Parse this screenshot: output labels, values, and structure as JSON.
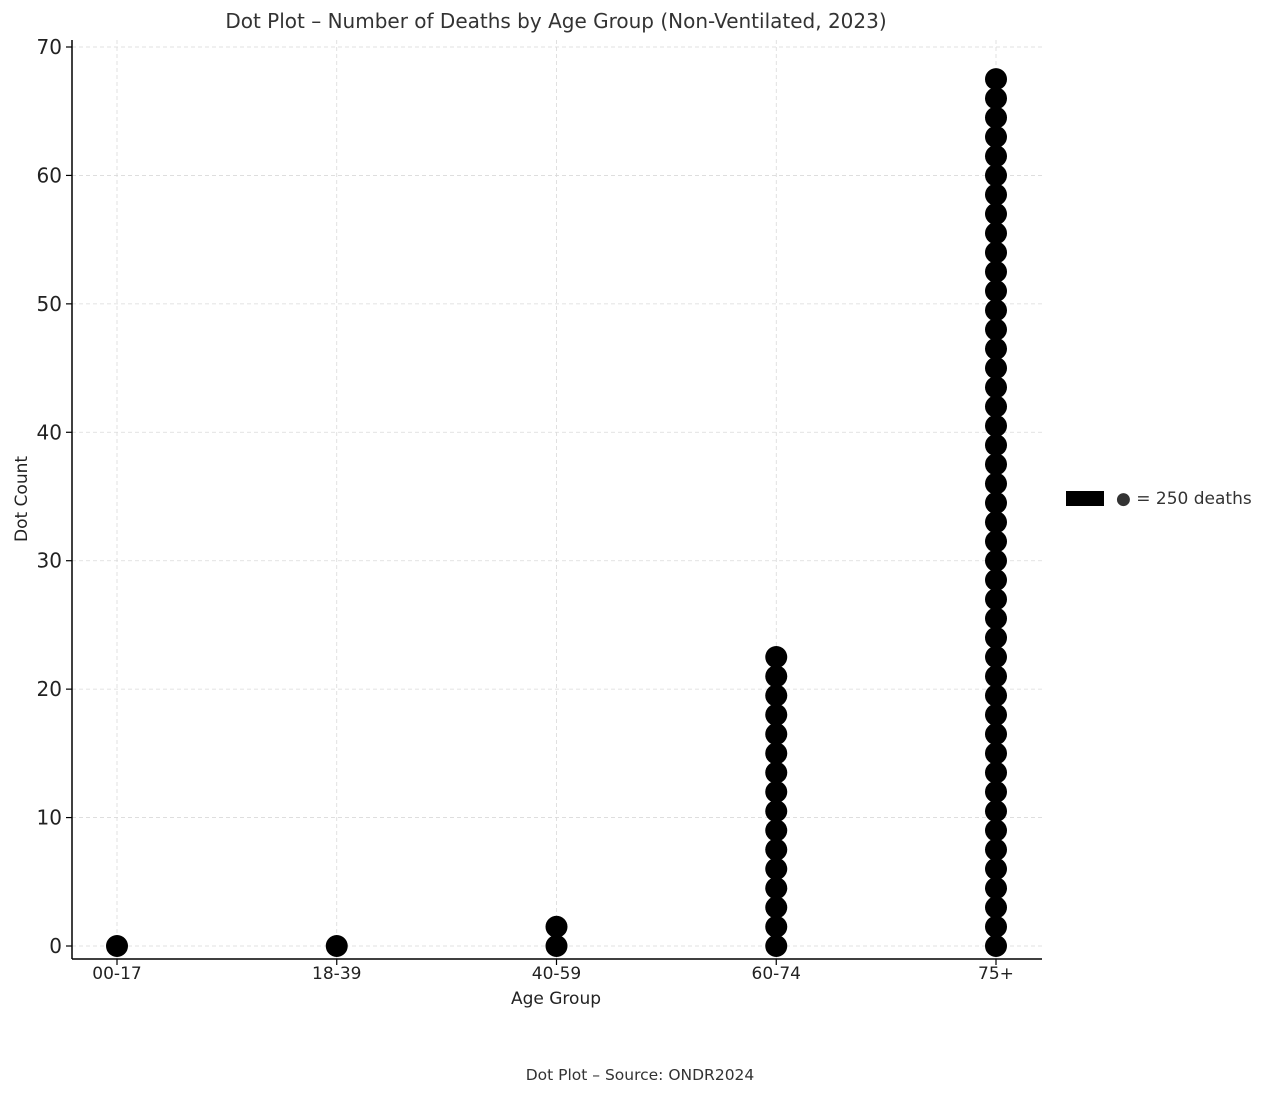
{
  "chart_data": {
    "type": "scatter",
    "title": "Dot Plot – Number of Deaths by Age Group (Non-Ventilated, 2023)",
    "xlabel": "Age Group",
    "ylabel": "Dot Count",
    "categories": [
      "00-17",
      "18-39",
      "40-59",
      "60-74",
      "75+"
    ],
    "dot_counts": [
      1,
      1,
      2,
      16,
      46
    ],
    "y_spacing": 1.5,
    "ylim": [
      -1,
      70.5
    ],
    "yticks": [
      0,
      10,
      20,
      30,
      40,
      50,
      60,
      70
    ],
    "grid": true,
    "legend": {
      "label": "● = 250 deaths",
      "placement": "right"
    },
    "caption": "Dot Plot – Source: ONDR2024",
    "colors": {
      "dot": "#000000",
      "grid": "#d9d9d9",
      "axis": "#000000",
      "text": "#333333"
    }
  }
}
